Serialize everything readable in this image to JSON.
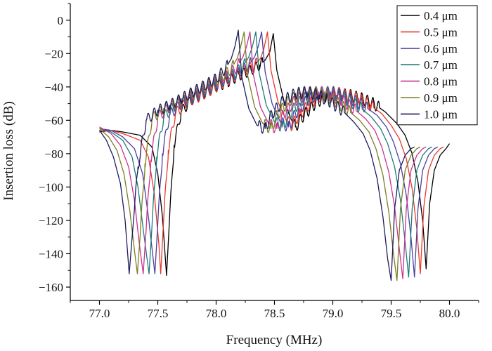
{
  "chart_data": {
    "type": "line",
    "xlabel": "Frequency (MHz)",
    "ylabel": "Insertion loss (dB)",
    "xlim": [
      76.75,
      80.25
    ],
    "ylim": [
      -168,
      10
    ],
    "x_ticks": [
      77.0,
      77.5,
      78.0,
      78.5,
      79.0,
      79.5,
      80.0
    ],
    "x_tick_labels": [
      "77.0",
      "77.5",
      "78.0",
      "78.5",
      "79.0",
      "79.5",
      "80.0"
    ],
    "y_ticks": [
      0,
      -20,
      -40,
      -60,
      -80,
      -100,
      -120,
      -140,
      -160
    ],
    "y_tick_labels": [
      "0",
      "−20",
      "−40",
      "−60",
      "−80",
      "−100",
      "−120",
      "−140",
      "−160"
    ],
    "grid": false,
    "legend_position": "top-right",
    "series": [
      {
        "name": "0.4 μm",
        "color": "#000000",
        "shift": 0.0,
        "points": [
          [
            77.0,
            -67
          ],
          [
            77.1,
            -66
          ],
          [
            77.2,
            -67
          ],
          [
            77.35,
            -69
          ],
          [
            77.45,
            -76
          ],
          [
            77.5,
            -92
          ],
          [
            77.54,
            -118
          ],
          [
            77.575,
            -153
          ],
          [
            77.6,
            -120
          ],
          [
            77.64,
            -75
          ],
          [
            77.7,
            -55
          ],
          [
            77.8,
            -47
          ],
          [
            77.9,
            -44
          ],
          [
            78.0,
            -40
          ],
          [
            78.1,
            -37
          ],
          [
            78.2,
            -33
          ],
          [
            78.3,
            -30
          ],
          [
            78.37,
            -27
          ],
          [
            78.42,
            -24
          ],
          [
            78.46,
            -19
          ],
          [
            78.49,
            -8
          ],
          [
            78.52,
            -30
          ],
          [
            78.58,
            -48
          ],
          [
            78.64,
            -59
          ],
          [
            78.68,
            -64
          ],
          [
            78.75,
            -57
          ],
          [
            78.85,
            -50
          ],
          [
            78.95,
            -45
          ],
          [
            79.05,
            -44
          ],
          [
            79.15,
            -45
          ],
          [
            79.25,
            -47
          ],
          [
            79.35,
            -50
          ],
          [
            79.45,
            -55
          ],
          [
            79.55,
            -62
          ],
          [
            79.62,
            -69
          ],
          [
            79.68,
            -80
          ],
          [
            79.73,
            -97
          ],
          [
            79.77,
            -120
          ],
          [
            79.8,
            -149
          ],
          [
            79.83,
            -110
          ],
          [
            79.87,
            -90
          ],
          [
            79.92,
            -81
          ],
          [
            79.97,
            -77
          ],
          [
            80.0,
            -74
          ]
        ]
      },
      {
        "name": "0.5 μm",
        "color": "#e8392b",
        "shift": -0.05,
        "points": [
          [
            77.0,
            -66
          ],
          [
            77.1,
            -66
          ],
          [
            77.2,
            -68
          ],
          [
            77.35,
            -72
          ],
          [
            77.42,
            -82
          ],
          [
            77.47,
            -104
          ],
          [
            77.51,
            -135
          ],
          [
            77.525,
            -152
          ],
          [
            77.55,
            -120
          ],
          [
            77.59,
            -78
          ],
          [
            77.65,
            -56
          ],
          [
            77.75,
            -49
          ],
          [
            77.85,
            -46
          ],
          [
            77.95,
            -42
          ],
          [
            78.05,
            -38
          ],
          [
            78.15,
            -34
          ],
          [
            78.25,
            -30
          ],
          [
            78.33,
            -27
          ],
          [
            78.38,
            -23
          ],
          [
            78.41,
            -17
          ],
          [
            78.44,
            -7
          ],
          [
            78.47,
            -30
          ],
          [
            78.53,
            -49
          ],
          [
            78.6,
            -60
          ],
          [
            78.65,
            -63
          ],
          [
            78.72,
            -56
          ],
          [
            78.82,
            -49
          ],
          [
            78.92,
            -44
          ],
          [
            79.02,
            -43
          ],
          [
            79.12,
            -45
          ],
          [
            79.22,
            -47
          ],
          [
            79.32,
            -51
          ],
          [
            79.42,
            -56
          ],
          [
            79.5,
            -63
          ],
          [
            79.57,
            -71
          ],
          [
            79.63,
            -83
          ],
          [
            79.68,
            -101
          ],
          [
            79.72,
            -125
          ],
          [
            79.75,
            -152
          ],
          [
            79.78,
            -112
          ],
          [
            79.82,
            -90
          ],
          [
            79.87,
            -81
          ],
          [
            79.92,
            -77
          ],
          [
            79.95,
            -76
          ]
        ]
      },
      {
        "name": "0.6 μm",
        "color": "#4a3fa0",
        "shift": -0.1,
        "points": [
          [
            77.0,
            -65
          ],
          [
            77.1,
            -66
          ],
          [
            77.2,
            -70
          ],
          [
            77.3,
            -77
          ],
          [
            77.37,
            -92
          ],
          [
            77.42,
            -118
          ],
          [
            77.475,
            -152
          ],
          [
            77.5,
            -122
          ],
          [
            77.54,
            -80
          ],
          [
            77.6,
            -57
          ],
          [
            77.7,
            -50
          ],
          [
            77.8,
            -47
          ],
          [
            77.9,
            -43
          ],
          [
            78.0,
            -39
          ],
          [
            78.1,
            -35
          ],
          [
            78.2,
            -31
          ],
          [
            78.28,
            -27
          ],
          [
            78.33,
            -22
          ],
          [
            78.36,
            -16
          ],
          [
            78.39,
            -7
          ],
          [
            78.42,
            -31
          ],
          [
            78.48,
            -50
          ],
          [
            78.55,
            -61
          ],
          [
            78.62,
            -64
          ],
          [
            78.68,
            -56
          ],
          [
            78.78,
            -48
          ],
          [
            78.88,
            -44
          ],
          [
            78.98,
            -43
          ],
          [
            79.08,
            -45
          ],
          [
            79.18,
            -48
          ],
          [
            79.28,
            -52
          ],
          [
            79.38,
            -57
          ],
          [
            79.46,
            -64
          ],
          [
            79.52,
            -73
          ],
          [
            79.58,
            -86
          ],
          [
            79.63,
            -105
          ],
          [
            79.67,
            -130
          ],
          [
            79.7,
            -154
          ],
          [
            79.73,
            -113
          ],
          [
            79.77,
            -90
          ],
          [
            79.82,
            -81
          ],
          [
            79.87,
            -77
          ],
          [
            79.9,
            -76
          ]
        ]
      },
      {
        "name": "0.7 μm",
        "color": "#1f7b78",
        "shift": -0.15,
        "points": [
          [
            77.0,
            -65
          ],
          [
            77.1,
            -67
          ],
          [
            77.2,
            -72
          ],
          [
            77.28,
            -82
          ],
          [
            77.33,
            -100
          ],
          [
            77.38,
            -128
          ],
          [
            77.425,
            -152
          ],
          [
            77.45,
            -124
          ],
          [
            77.49,
            -82
          ],
          [
            77.55,
            -58
          ],
          [
            77.65,
            -51
          ],
          [
            77.75,
            -48
          ],
          [
            77.85,
            -44
          ],
          [
            77.95,
            -40
          ],
          [
            78.05,
            -36
          ],
          [
            78.15,
            -32
          ],
          [
            78.23,
            -28
          ],
          [
            78.28,
            -22
          ],
          [
            78.31,
            -16
          ],
          [
            78.34,
            -7
          ],
          [
            78.37,
            -32
          ],
          [
            78.43,
            -51
          ],
          [
            78.5,
            -61
          ],
          [
            78.57,
            -64
          ],
          [
            78.63,
            -56
          ],
          [
            78.73,
            -48
          ],
          [
            78.83,
            -44
          ],
          [
            78.93,
            -43
          ],
          [
            79.03,
            -45
          ],
          [
            79.13,
            -48
          ],
          [
            79.23,
            -52
          ],
          [
            79.33,
            -58
          ],
          [
            79.41,
            -65
          ],
          [
            79.47,
            -74
          ],
          [
            79.53,
            -88
          ],
          [
            79.58,
            -108
          ],
          [
            79.62,
            -133
          ],
          [
            79.65,
            -154
          ],
          [
            79.68,
            -113
          ],
          [
            79.72,
            -90
          ],
          [
            79.77,
            -81
          ],
          [
            79.82,
            -77
          ],
          [
            79.85,
            -76
          ]
        ]
      },
      {
        "name": "0.8 μm",
        "color": "#c8328f",
        "shift": -0.2,
        "points": [
          [
            77.0,
            -64
          ],
          [
            77.1,
            -68
          ],
          [
            77.18,
            -75
          ],
          [
            77.25,
            -88
          ],
          [
            77.3,
            -108
          ],
          [
            77.34,
            -133
          ],
          [
            77.375,
            -152
          ],
          [
            77.4,
            -126
          ],
          [
            77.44,
            -84
          ],
          [
            77.5,
            -58
          ],
          [
            77.6,
            -52
          ],
          [
            77.7,
            -49
          ],
          [
            77.8,
            -45
          ],
          [
            77.9,
            -41
          ],
          [
            78.0,
            -37
          ],
          [
            78.1,
            -33
          ],
          [
            78.18,
            -28
          ],
          [
            78.23,
            -22
          ],
          [
            78.26,
            -16
          ],
          [
            78.29,
            -7
          ],
          [
            78.32,
            -33
          ],
          [
            78.38,
            -52
          ],
          [
            78.45,
            -62
          ],
          [
            78.52,
            -65
          ],
          [
            78.58,
            -56
          ],
          [
            78.68,
            -48
          ],
          [
            78.78,
            -44
          ],
          [
            78.88,
            -43
          ],
          [
            78.98,
            -45
          ],
          [
            79.08,
            -48
          ],
          [
            79.18,
            -53
          ],
          [
            79.28,
            -59
          ],
          [
            79.36,
            -66
          ],
          [
            79.42,
            -76
          ],
          [
            79.48,
            -91
          ],
          [
            79.53,
            -112
          ],
          [
            79.57,
            -137
          ],
          [
            79.6,
            -155
          ],
          [
            79.63,
            -113
          ],
          [
            79.67,
            -90
          ],
          [
            79.72,
            -81
          ],
          [
            79.77,
            -77
          ],
          [
            79.8,
            -76
          ]
        ]
      },
      {
        "name": "0.9 μm",
        "color": "#7d7d22",
        "shift": -0.25,
        "points": [
          [
            77.0,
            -65
          ],
          [
            77.08,
            -70
          ],
          [
            77.15,
            -78
          ],
          [
            77.21,
            -92
          ],
          [
            77.26,
            -114
          ],
          [
            77.3,
            -138
          ],
          [
            77.325,
            -152
          ],
          [
            77.35,
            -128
          ],
          [
            77.39,
            -86
          ],
          [
            77.45,
            -59
          ],
          [
            77.55,
            -53
          ],
          [
            77.65,
            -50
          ],
          [
            77.75,
            -46
          ],
          [
            77.85,
            -42
          ],
          [
            77.95,
            -38
          ],
          [
            78.05,
            -34
          ],
          [
            78.13,
            -29
          ],
          [
            78.18,
            -23
          ],
          [
            78.21,
            -16
          ],
          [
            78.24,
            -7
          ],
          [
            78.27,
            -33
          ],
          [
            78.33,
            -52
          ],
          [
            78.4,
            -62
          ],
          [
            78.47,
            -65
          ],
          [
            78.53,
            -56
          ],
          [
            78.63,
            -48
          ],
          [
            78.73,
            -44
          ],
          [
            78.83,
            -43
          ],
          [
            78.93,
            -45
          ],
          [
            79.03,
            -49
          ],
          [
            79.13,
            -54
          ],
          [
            79.23,
            -60
          ],
          [
            79.31,
            -67
          ],
          [
            79.37,
            -77
          ],
          [
            79.43,
            -93
          ],
          [
            79.48,
            -115
          ],
          [
            79.52,
            -140
          ],
          [
            79.55,
            -156
          ],
          [
            79.58,
            -113
          ],
          [
            79.62,
            -90
          ],
          [
            79.67,
            -81
          ],
          [
            79.72,
            -77
          ],
          [
            79.75,
            -76
          ]
        ]
      },
      {
        "name": "1.0 μm",
        "color": "#1c1c5e",
        "shift": -0.3,
        "points": [
          [
            77.0,
            -66
          ],
          [
            77.06,
            -72
          ],
          [
            77.12,
            -82
          ],
          [
            77.18,
            -98
          ],
          [
            77.22,
            -120
          ],
          [
            77.255,
            -152
          ],
          [
            77.28,
            -130
          ],
          [
            77.33,
            -88
          ],
          [
            77.4,
            -60
          ],
          [
            77.5,
            -54
          ],
          [
            77.6,
            -51
          ],
          [
            77.7,
            -47
          ],
          [
            77.8,
            -43
          ],
          [
            77.9,
            -39
          ],
          [
            78.0,
            -35
          ],
          [
            78.08,
            -29
          ],
          [
            78.13,
            -23
          ],
          [
            78.16,
            -16
          ],
          [
            78.19,
            -6
          ],
          [
            78.22,
            -34
          ],
          [
            78.28,
            -53
          ],
          [
            78.35,
            -63
          ],
          [
            78.42,
            -65
          ],
          [
            78.48,
            -56
          ],
          [
            78.58,
            -48
          ],
          [
            78.68,
            -44
          ],
          [
            78.78,
            -43
          ],
          [
            78.88,
            -45
          ],
          [
            78.98,
            -49
          ],
          [
            79.08,
            -54
          ],
          [
            79.18,
            -61
          ],
          [
            79.26,
            -68
          ],
          [
            79.32,
            -78
          ],
          [
            79.38,
            -95
          ],
          [
            79.43,
            -118
          ],
          [
            79.47,
            -143
          ],
          [
            79.5,
            -156
          ],
          [
            79.53,
            -113
          ],
          [
            79.57,
            -90
          ],
          [
            79.62,
            -81
          ],
          [
            79.67,
            -77
          ],
          [
            79.7,
            -76
          ]
        ]
      }
    ]
  }
}
